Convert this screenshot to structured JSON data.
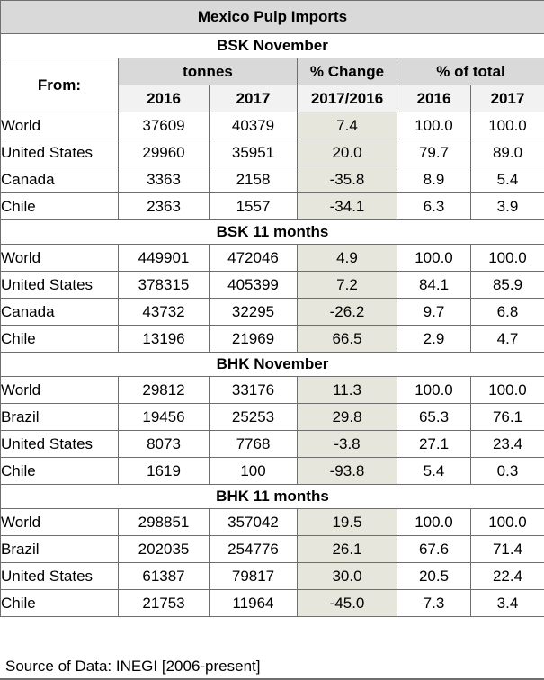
{
  "chart_data": {
    "type": "table",
    "title": "Mexico Pulp Imports",
    "header": {
      "from_label": "From:",
      "group_tonnes": "tonnes",
      "group_change": "% Change",
      "group_share": "% of total",
      "col_2016": "2016",
      "col_2017": "2017",
      "col_change": "2017/2016",
      "col_share_2016": "2016",
      "col_share_2017": "2017"
    },
    "sections": [
      {
        "title": "BSK November",
        "rows": [
          {
            "country": "World",
            "t2016": "37609",
            "t2017": "40379",
            "change": "7.4",
            "share2016": "100.0",
            "share2017": "100.0"
          },
          {
            "country": "United States",
            "t2016": "29960",
            "t2017": "35951",
            "change": "20.0",
            "share2016": "79.7",
            "share2017": "89.0"
          },
          {
            "country": "Canada",
            "t2016": "3363",
            "t2017": "2158",
            "change": "-35.8",
            "share2016": "8.9",
            "share2017": "5.4"
          },
          {
            "country": "Chile",
            "t2016": "2363",
            "t2017": "1557",
            "change": "-34.1",
            "share2016": "6.3",
            "share2017": "3.9"
          }
        ]
      },
      {
        "title": "BSK 11 months",
        "rows": [
          {
            "country": "World",
            "t2016": "449901",
            "t2017": "472046",
            "change": "4.9",
            "share2016": "100.0",
            "share2017": "100.0"
          },
          {
            "country": "United States",
            "t2016": "378315",
            "t2017": "405399",
            "change": "7.2",
            "share2016": "84.1",
            "share2017": "85.9"
          },
          {
            "country": "Canada",
            "t2016": "43732",
            "t2017": "32295",
            "change": "-26.2",
            "share2016": "9.7",
            "share2017": "6.8"
          },
          {
            "country": "Chile",
            "t2016": "13196",
            "t2017": "21969",
            "change": "66.5",
            "share2016": "2.9",
            "share2017": "4.7"
          }
        ]
      },
      {
        "title": "BHK November",
        "rows": [
          {
            "country": "World",
            "t2016": "29812",
            "t2017": "33176",
            "change": "11.3",
            "share2016": "100.0",
            "share2017": "100.0"
          },
          {
            "country": "Brazil",
            "t2016": "19456",
            "t2017": "25253",
            "change": "29.8",
            "share2016": "65.3",
            "share2017": "76.1"
          },
          {
            "country": "United States",
            "t2016": "8073",
            "t2017": "7768",
            "change": "-3.8",
            "share2016": "27.1",
            "share2017": "23.4"
          },
          {
            "country": "Chile",
            "t2016": "1619",
            "t2017": "100",
            "change": "-93.8",
            "share2016": "5.4",
            "share2017": "0.3"
          }
        ]
      },
      {
        "title": "BHK 11 months",
        "rows": [
          {
            "country": "World",
            "t2016": "298851",
            "t2017": "357042",
            "change": "19.5",
            "share2016": "100.0",
            "share2017": "100.0"
          },
          {
            "country": "Brazil",
            "t2016": "202035",
            "t2017": "254776",
            "change": "26.1",
            "share2016": "67.6",
            "share2017": "71.4"
          },
          {
            "country": "United States",
            "t2016": "61387",
            "t2017": "79817",
            "change": "30.0",
            "share2016": "20.5",
            "share2017": "22.4"
          },
          {
            "country": "Chile",
            "t2016": "21753",
            "t2017": "11964",
            "change": "-45.0",
            "share2016": "7.3",
            "share2017": "3.4"
          }
        ]
      }
    ],
    "source": "Source of Data: INEGI [2006-present]"
  }
}
